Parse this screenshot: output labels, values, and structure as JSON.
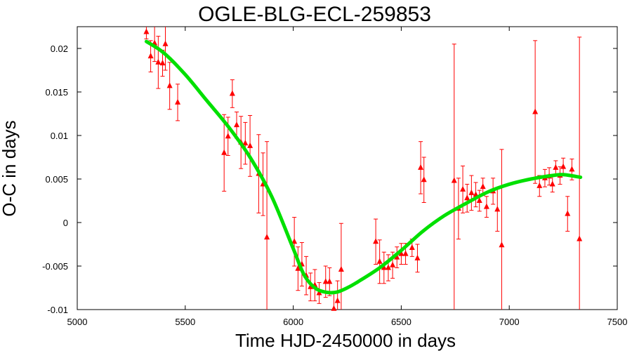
{
  "chart_data": {
    "type": "scatter",
    "title": "OGLE-BLG-ECL-259853",
    "xlabel": "Time HJD-2450000 in days",
    "ylabel": "O-C in days",
    "xlim": [
      5000,
      7500
    ],
    "ylim": [
      -0.01,
      0.0225
    ],
    "x_ticks": [
      5000,
      5500,
      6000,
      6500,
      7000,
      7500
    ],
    "y_ticks": [
      -0.01,
      -0.005,
      0,
      0.005,
      0.01,
      0.015,
      0.02
    ],
    "x_tick_labels": [
      "5000",
      "5500",
      "6000",
      "6500",
      "7000",
      "7500"
    ],
    "y_tick_labels": [
      "-0.01",
      "-0.005",
      "0",
      "0.005",
      "0.01",
      "0.015",
      "0.02"
    ],
    "grid": false,
    "marker_color": "#ff0000",
    "fit_color": "#00e000",
    "series": [
      {
        "kind": "measurements",
        "points": [
          {
            "x": 5320,
            "y": 0.0219,
            "err": 0.0008
          },
          {
            "x": 5340,
            "y": 0.0191,
            "err": 0.0018
          },
          {
            "x": 5358,
            "y": 0.0206,
            "err": 0.0021
          },
          {
            "x": 5375,
            "y": 0.0184,
            "err": 0.003
          },
          {
            "x": 5395,
            "y": 0.0183,
            "err": 0.0015
          },
          {
            "x": 5408,
            "y": 0.0205,
            "err": 0.003
          },
          {
            "x": 5428,
            "y": 0.0157,
            "err": 0.0027
          },
          {
            "x": 5465,
            "y": 0.0138,
            "err": 0.0021
          },
          {
            "x": 5680,
            "y": 0.008,
            "err": 0.0044
          },
          {
            "x": 5698,
            "y": 0.0099,
            "err": 0.0022
          },
          {
            "x": 5718,
            "y": 0.0148,
            "err": 0.0016
          },
          {
            "x": 5738,
            "y": 0.0112,
            "err": 0.0015
          },
          {
            "x": 5758,
            "y": 0.0092,
            "err": 0.003
          },
          {
            "x": 5778,
            "y": 0.0091,
            "err": 0.0024
          },
          {
            "x": 5800,
            "y": 0.0088,
            "err": 0.0035
          },
          {
            "x": 5840,
            "y": 0.0056,
            "err": 0.0045
          },
          {
            "x": 5860,
            "y": 0.0044,
            "err": 0.0036
          },
          {
            "x": 5878,
            "y": -0.0017,
            "err": 0.011
          },
          {
            "x": 6005,
            "y": -0.0022,
            "err": 0.0028
          },
          {
            "x": 6022,
            "y": -0.0053,
            "err": 0.0025
          },
          {
            "x": 6040,
            "y": -0.0048,
            "err": 0.0025
          },
          {
            "x": 6060,
            "y": -0.0061,
            "err": 0.0022
          },
          {
            "x": 6080,
            "y": -0.0074,
            "err": 0.0016
          },
          {
            "x": 6100,
            "y": -0.0072,
            "err": 0.0018
          },
          {
            "x": 6120,
            "y": -0.0081,
            "err": 0.0012
          },
          {
            "x": 6150,
            "y": -0.0068,
            "err": 0.0018
          },
          {
            "x": 6168,
            "y": -0.0068,
            "err": 0.0016
          },
          {
            "x": 6188,
            "y": -0.0099,
            "err": 0.002
          },
          {
            "x": 6205,
            "y": -0.009,
            "err": 0.0023
          },
          {
            "x": 6222,
            "y": -0.0054,
            "err": 0.0053
          },
          {
            "x": 6382,
            "y": -0.0022,
            "err": 0.0026
          },
          {
            "x": 6400,
            "y": -0.0045,
            "err": 0.0025
          },
          {
            "x": 6420,
            "y": -0.0052,
            "err": 0.0018
          },
          {
            "x": 6440,
            "y": -0.0052,
            "err": 0.0015
          },
          {
            "x": 6460,
            "y": -0.0049,
            "err": 0.0015
          },
          {
            "x": 6480,
            "y": -0.004,
            "err": 0.0012
          },
          {
            "x": 6500,
            "y": -0.0036,
            "err": 0.0012
          },
          {
            "x": 6520,
            "y": -0.0036,
            "err": 0.0012
          },
          {
            "x": 6550,
            "y": -0.0029,
            "err": 0.001
          },
          {
            "x": 6575,
            "y": -0.0041,
            "err": 0.0016
          },
          {
            "x": 6590,
            "y": 0.0063,
            "err": 0.003
          },
          {
            "x": 6605,
            "y": 0.0049,
            "err": 0.0026
          },
          {
            "x": 6745,
            "y": 0.0048,
            "err": 0.0157
          },
          {
            "x": 6765,
            "y": 0.0016,
            "err": 0.0035
          },
          {
            "x": 6785,
            "y": 0.0038,
            "err": 0.0027
          },
          {
            "x": 6805,
            "y": 0.0028,
            "err": 0.0016
          },
          {
            "x": 6825,
            "y": 0.0034,
            "err": 0.002
          },
          {
            "x": 6845,
            "y": 0.0032,
            "err": 0.0014
          },
          {
            "x": 6862,
            "y": 0.0025,
            "err": 0.0012
          },
          {
            "x": 6878,
            "y": 0.0041,
            "err": 0.001
          },
          {
            "x": 6895,
            "y": 0.0018,
            "err": 0.0012
          },
          {
            "x": 6925,
            "y": 0.0036,
            "err": 0.0015
          },
          {
            "x": 6945,
            "y": 0.0015,
            "err": 0.0025
          },
          {
            "x": 6965,
            "y": -0.0026,
            "err": 0.011
          },
          {
            "x": 7120,
            "y": 0.0127,
            "err": 0.0082
          },
          {
            "x": 7140,
            "y": 0.0042,
            "err": 0.0012
          },
          {
            "x": 7165,
            "y": 0.0051,
            "err": 0.001
          },
          {
            "x": 7185,
            "y": 0.0053,
            "err": 0.001
          },
          {
            "x": 7200,
            "y": 0.0044,
            "err": 0.0009
          },
          {
            "x": 7215,
            "y": 0.0063,
            "err": 0.0008
          },
          {
            "x": 7235,
            "y": 0.0054,
            "err": 0.001
          },
          {
            "x": 7250,
            "y": 0.0064,
            "err": 0.001
          },
          {
            "x": 7270,
            "y": 0.001,
            "err": 0.002
          },
          {
            "x": 7290,
            "y": 0.0061,
            "err": 0.0012
          },
          {
            "x": 7325,
            "y": -0.0019,
            "err": 0.0232
          }
        ]
      },
      {
        "kind": "fit",
        "points": [
          {
            "x": 5320,
            "y": 0.0208
          },
          {
            "x": 5400,
            "y": 0.0195
          },
          {
            "x": 5500,
            "y": 0.017
          },
          {
            "x": 5600,
            "y": 0.014
          },
          {
            "x": 5700,
            "y": 0.011
          },
          {
            "x": 5800,
            "y": 0.0075
          },
          {
            "x": 5900,
            "y": 0.003
          },
          {
            "x": 6000,
            "y": -0.003
          },
          {
            "x": 6050,
            "y": -0.006
          },
          {
            "x": 6100,
            "y": -0.0075
          },
          {
            "x": 6150,
            "y": -0.008
          },
          {
            "x": 6200,
            "y": -0.008
          },
          {
            "x": 6250,
            "y": -0.0075
          },
          {
            "x": 6300,
            "y": -0.0068
          },
          {
            "x": 6400,
            "y": -0.0052
          },
          {
            "x": 6500,
            "y": -0.0032
          },
          {
            "x": 6600,
            "y": -0.001
          },
          {
            "x": 6700,
            "y": 0.0008
          },
          {
            "x": 6800,
            "y": 0.0022
          },
          {
            "x": 6900,
            "y": 0.0035
          },
          {
            "x": 7000,
            "y": 0.0044
          },
          {
            "x": 7100,
            "y": 0.005
          },
          {
            "x": 7200,
            "y": 0.0054
          },
          {
            "x": 7250,
            "y": 0.0055
          },
          {
            "x": 7330,
            "y": 0.0052
          }
        ]
      }
    ]
  }
}
